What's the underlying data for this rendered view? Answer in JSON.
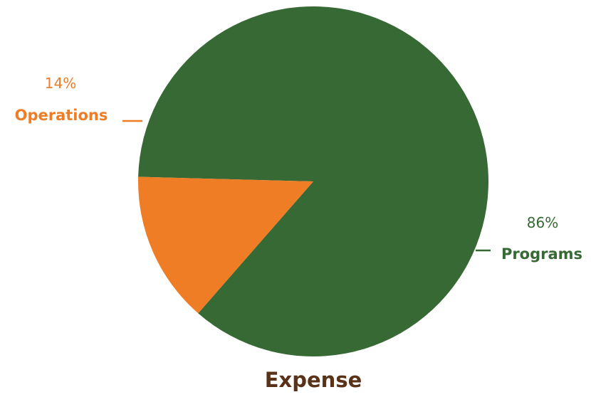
{
  "chart_data": {
    "type": "pie",
    "title": "Expense",
    "categories": [
      "Programs",
      "Operations"
    ],
    "values": [
      86,
      14
    ],
    "percent_labels": [
      "86%",
      "14%"
    ],
    "colors": [
      "#376935",
      "#ee7d26"
    ],
    "title_color": "#5a3218",
    "legend": "none"
  }
}
